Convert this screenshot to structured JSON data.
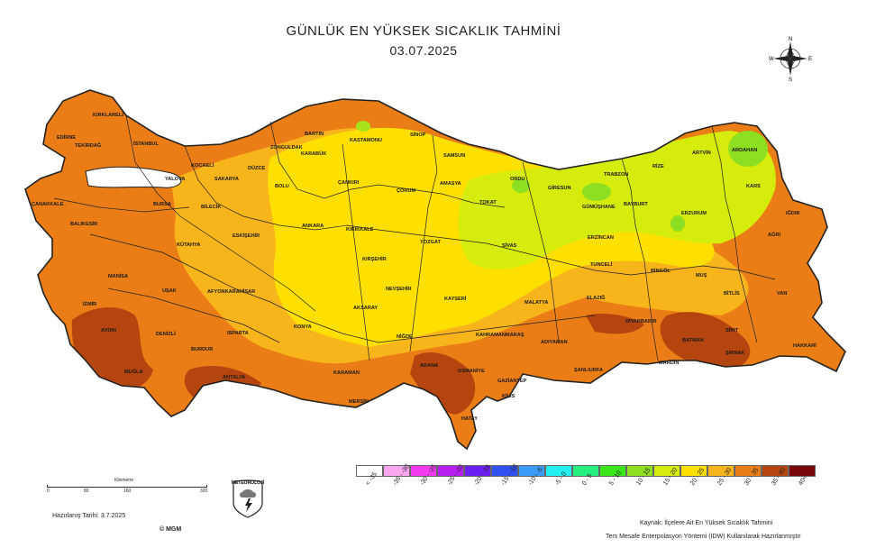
{
  "header": {
    "title": "GÜNLÜK EN YÜKSEK SICAKLIK TAHMİNİ",
    "date": "03.07.2025"
  },
  "compass": {
    "n": "N",
    "s": "S",
    "e": "E",
    "w": "W",
    "icon": "compass-rose-icon"
  },
  "colors": {
    "c25_30": "#f8b41b",
    "c30_35": "#ea7d16",
    "c35_40": "#b5450e",
    "c20_25": "#fde002",
    "c15_20": "#d6ec0d",
    "c10_15": "#8ede22",
    "border": "#222222"
  },
  "provinces": [
    "KIRKLARELİ",
    "EDİRNE",
    "TEKİRDAĞ",
    "İSTANBUL",
    "KOCAELİ",
    "SAKARYA",
    "DÜZCE",
    "ZONGULDAK",
    "BARTIN",
    "KASTAMONU",
    "SİNOP",
    "KARABÜK",
    "BOLU",
    "YALOVA",
    "BURSA",
    "BİLECİK",
    "ÇANAKKALE",
    "BALIKESİR",
    "ESKİŞEHİR",
    "ANKARA",
    "ÇANKIRI",
    "ÇORUM",
    "SAMSUN",
    "AMASYA",
    "ORDU",
    "GİRESUN",
    "TRABZON",
    "RİZE",
    "ARTVİN",
    "ARDAHAN",
    "KARS",
    "IĞDIR",
    "ERZURUM",
    "BAYBURT",
    "GÜMÜŞHANE",
    "TOKAT",
    "SİVAS",
    "YOZGAT",
    "KIRIKKALE",
    "KIRŞEHİR",
    "NEVŞEHİR",
    "KAYSERİ",
    "ERZİNCAN",
    "TUNCELİ",
    "BİNGÖL",
    "MUŞ",
    "AĞRI",
    "VAN",
    "BİTLİS",
    "HAKKARİ",
    "ŞIRNAK",
    "SİİRT",
    "BATMAN",
    "MARDİN",
    "DİYARBAKIR",
    "ŞANLIURFA",
    "ADIYAMAN",
    "MALATYA",
    "ELAZIĞ",
    "KAHRAMANMARAŞ",
    "GAZİANTEP",
    "KİLİS",
    "OSMANİYE",
    "ADANA",
    "HATAY",
    "MERSİN",
    "KARAMAN",
    "NİĞDE",
    "AKSARAY",
    "KONYA",
    "ANTALYA",
    "ISPARTA",
    "BURDUR",
    "DENİZLİ",
    "AYDIN",
    "MUĞLA",
    "İZMİR",
    "MANİSA",
    "UŞAK",
    "KÜTAHYA",
    "AFYONKARAHİSAR"
  ],
  "legend": {
    "colors": [
      "#ffffff",
      "#f9a8f0",
      "#f23cf0",
      "#b71ff0",
      "#6b1ff0",
      "#3050ef",
      "#3b9cf7",
      "#22f0f0",
      "#25f07f",
      "#3ae61a",
      "#8ede22",
      "#d6ec0d",
      "#fde002",
      "#f8b41b",
      "#ea7d16",
      "#b5450e",
      "#7a0707"
    ],
    "labels": [
      "< -35",
      "-35 - -30",
      "-30 - -25",
      "-25 - -20",
      "-20 - -15",
      "-15 - -10",
      "-10 - -5",
      "-5 - 0",
      "0 - 5",
      "5 - 10",
      "10 - 15",
      "15 - 20",
      "20 - 25",
      "25 - 30",
      "30 - 35",
      "35 - 40",
      "40<"
    ]
  },
  "scale": {
    "title": "Kilometre",
    "ticks": [
      "0",
      "80",
      "160",
      "320"
    ]
  },
  "footer": {
    "prepared": "Hazırlanış Tarihi: 3.7.2025",
    "copyright": "© MGM",
    "logo": "METEOROLOJİ",
    "source": "Kaynak: İlçelere Ait En Yüksek Sıcaklık Tahmini",
    "method": "Ters Mesafe Enterpolasyon Yöntemi (IDW) Kullanılarak Hazırlanmıştır"
  }
}
